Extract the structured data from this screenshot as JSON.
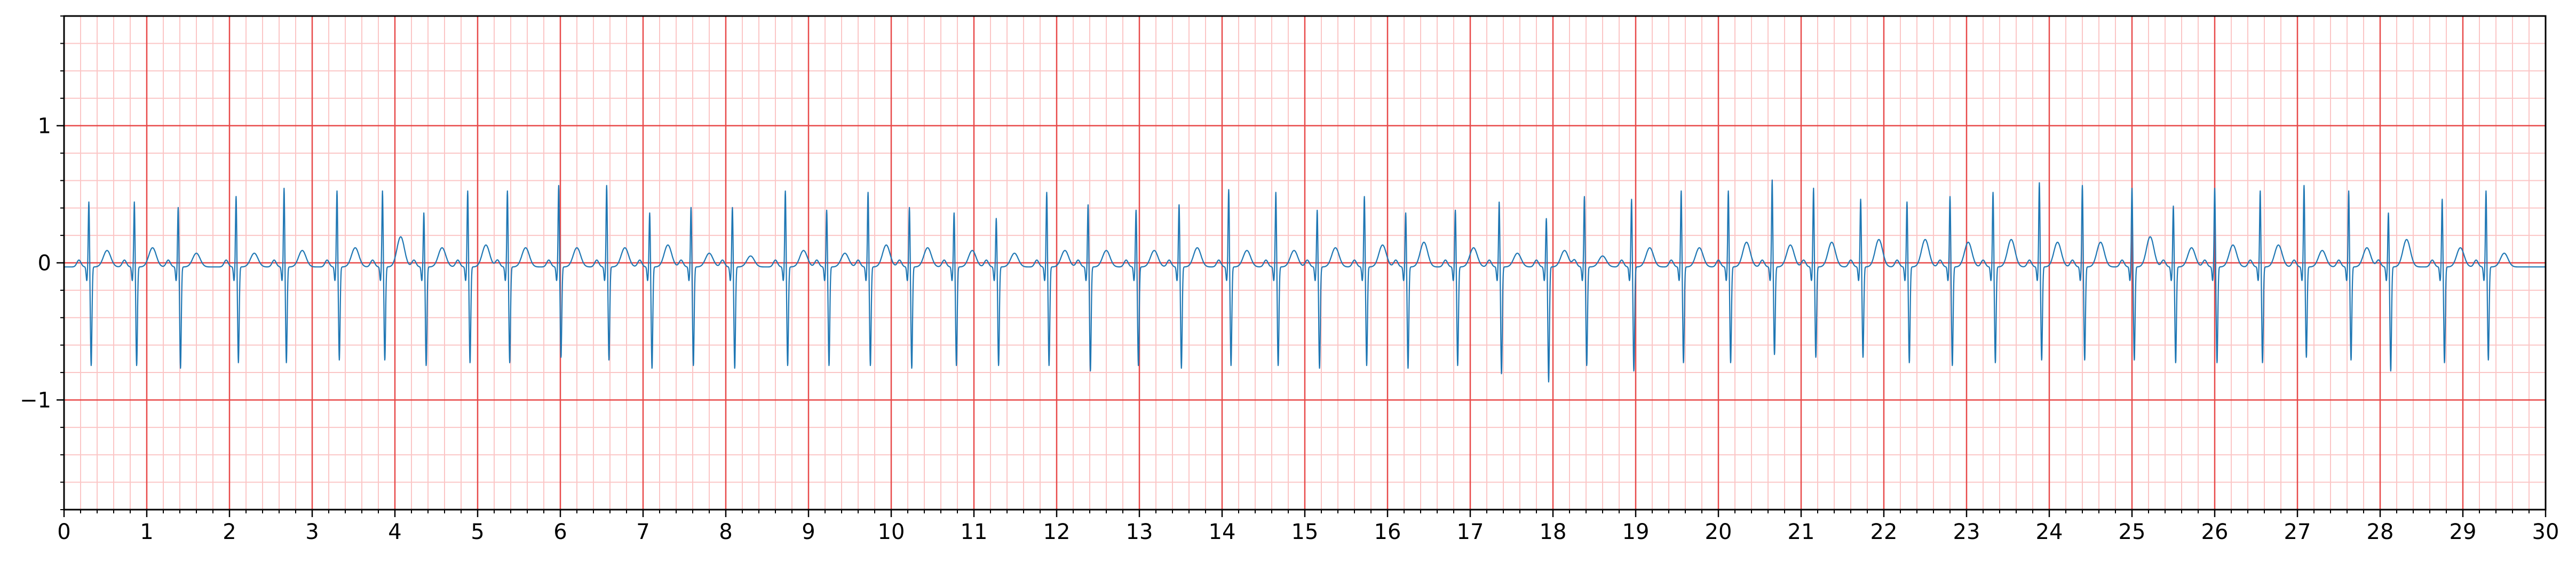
{
  "chart_data": {
    "type": "line",
    "title": "",
    "xlabel": "",
    "ylabel": "",
    "xlim": [
      0,
      30
    ],
    "ylim": [
      -1.8,
      1.8
    ],
    "x_ticks": [
      0,
      1,
      2,
      3,
      4,
      5,
      6,
      7,
      8,
      9,
      10,
      11,
      12,
      13,
      14,
      15,
      16,
      17,
      18,
      19,
      20,
      21,
      22,
      23,
      24,
      25,
      26,
      27,
      28,
      29,
      30
    ],
    "x_tick_labels": [
      "0",
      "1",
      "2",
      "3",
      "4",
      "5",
      "6",
      "7",
      "8",
      "9",
      "10",
      "11",
      "12",
      "13",
      "14",
      "15",
      "16",
      "17",
      "18",
      "19",
      "20",
      "21",
      "22",
      "23",
      "24",
      "25",
      "26",
      "27",
      "28",
      "29",
      "30"
    ],
    "y_ticks": [
      -1,
      0,
      1
    ],
    "y_tick_labels": [
      "−1",
      "0",
      "1"
    ],
    "grid": {
      "major": true,
      "minor": true,
      "major_color": "#e84a4a",
      "minor_color": "#fbc6c6",
      "x_major_step": 1,
      "x_minor_step": 0.2,
      "y_major_step": 1,
      "y_minor_step": 0.2
    },
    "series": [
      {
        "color": "#1f77b4",
        "beats": {
          "t": [
            0.3,
            0.85,
            1.38,
            2.08,
            2.66,
            3.3,
            3.85,
            4.35,
            4.88,
            5.36,
            5.98,
            6.56,
            7.08,
            7.58,
            8.08,
            8.72,
            9.22,
            9.72,
            10.22,
            10.76,
            11.27,
            11.88,
            12.38,
            12.96,
            13.48,
            14.08,
            14.65,
            15.15,
            15.72,
            16.22,
            16.82,
            17.35,
            17.92,
            18.38,
            18.95,
            19.55,
            20.12,
            20.65,
            21.15,
            21.72,
            22.28,
            22.8,
            23.32,
            23.88,
            24.4,
            25.0,
            25.5,
            26.0,
            26.55,
            27.08,
            27.62,
            28.1,
            28.75,
            29.28
          ],
          "r_peak": [
            0.48,
            0.48,
            0.44,
            0.52,
            0.58,
            0.56,
            0.56,
            0.4,
            0.56,
            0.56,
            0.6,
            0.6,
            0.4,
            0.44,
            0.44,
            0.56,
            0.42,
            0.55,
            0.44,
            0.4,
            0.36,
            0.55,
            0.46,
            0.42,
            0.46,
            0.57,
            0.55,
            0.42,
            0.52,
            0.4,
            0.42,
            0.48,
            0.36,
            0.52,
            0.5,
            0.56,
            0.56,
            0.64,
            0.58,
            0.5,
            0.48,
            0.52,
            0.55,
            0.62,
            0.6,
            0.58,
            0.45,
            0.58,
            0.56,
            0.6,
            0.56,
            0.4,
            0.5,
            0.56
          ],
          "s_trough": [
            -0.72,
            -0.72,
            -0.74,
            -0.7,
            -0.7,
            -0.68,
            -0.68,
            -0.72,
            -0.7,
            -0.7,
            -0.66,
            -0.68,
            -0.74,
            -0.72,
            -0.74,
            -0.72,
            -0.72,
            -0.72,
            -0.74,
            -0.72,
            -0.72,
            -0.72,
            -0.76,
            -0.72,
            -0.74,
            -0.72,
            -0.72,
            -0.74,
            -0.72,
            -0.74,
            -0.72,
            -0.78,
            -0.84,
            -0.72,
            -0.76,
            -0.7,
            -0.7,
            -0.64,
            -0.66,
            -0.66,
            -0.7,
            -0.72,
            -0.7,
            -0.68,
            -0.68,
            -0.68,
            -0.7,
            -0.7,
            -0.7,
            -0.66,
            -0.68,
            -0.76,
            -0.7,
            -0.68
          ],
          "t_wave": [
            0.12,
            0.14,
            0.1,
            0.1,
            0.12,
            0.14,
            0.22,
            0.14,
            0.16,
            0.14,
            0.14,
            0.14,
            0.16,
            0.1,
            0.08,
            0.12,
            0.1,
            0.16,
            0.14,
            0.12,
            0.1,
            0.12,
            0.12,
            0.12,
            0.14,
            0.12,
            0.12,
            0.14,
            0.16,
            0.18,
            0.14,
            0.1,
            0.12,
            0.08,
            0.14,
            0.14,
            0.18,
            0.16,
            0.18,
            0.2,
            0.2,
            0.18,
            0.2,
            0.18,
            0.18,
            0.22,
            0.14,
            0.16,
            0.16,
            0.12,
            0.14,
            0.2,
            0.14,
            0.1
          ]
        }
      }
    ]
  }
}
